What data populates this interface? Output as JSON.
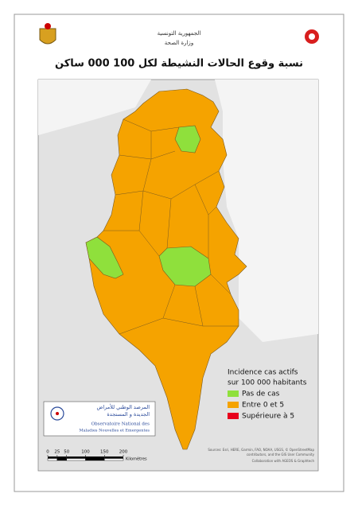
{
  "header": {
    "country": "الجمهورية التونسية",
    "ministry": "وزارة الصحة"
  },
  "title": "نسبة وقوع الحالات النشيطة لكل 100 000 ساكن",
  "legend": {
    "title": [
      "Incidence cas actifs",
      "sur 100 000 habitants"
    ],
    "items": [
      {
        "label": "Pas de cas",
        "color": "#8fe03c"
      },
      {
        "label": "Entre 0 et 5",
        "color": "#f5a300"
      },
      {
        "label": "Supérieure à 5",
        "color": "#e8001c"
      }
    ]
  },
  "logo": {
    "arabic": [
      "المرصد الوطني للأمراض",
      "الجديدة و المستجدة"
    ],
    "french": [
      "Observatoire National des",
      "Maladies Nouvelles et Emergentes"
    ]
  },
  "scale_bar": {
    "ticks": [
      0,
      25,
      50,
      100,
      150,
      200
    ],
    "unit": "Kilomètres"
  },
  "sources": [
    "Sources: Esri, HERE, Garmin, FAO, NOAA, USGS, © OpenStreetMap",
    "contributors, and the GIS User Community",
    "Collaboration with AGEOS & Graphtech"
  ]
}
